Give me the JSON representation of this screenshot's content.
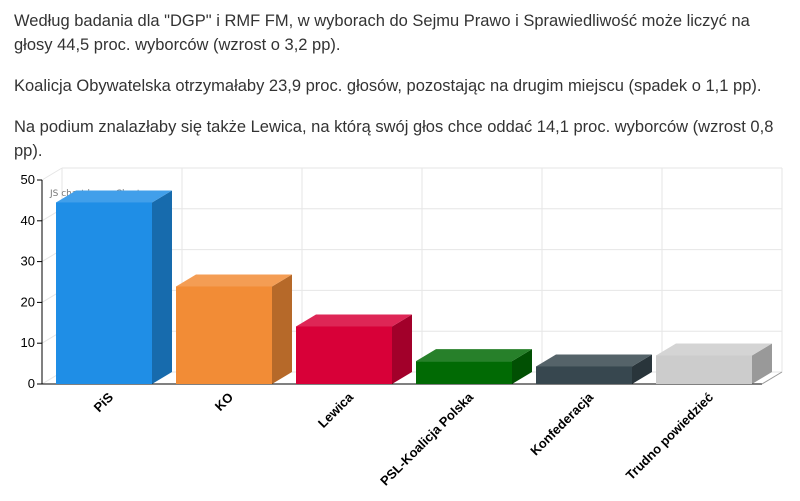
{
  "article": {
    "paragraphs": [
      "Według badania dla \"DGP\" i RMF FM, w wyborach do Sejmu Prawo i Sprawiedliwość może liczyć na głosy 44,5 proc. wyborców (wzrost o 3,2 pp).",
      "Koalicja Obywatelska otrzymałaby 23,9 proc. głosów, pozostając na drugim miejscu (spadek o 1,1 pp).",
      "Na podium znalazłaby się także Lewica, na którą swój głos chce oddać 14,1 proc. wyborców (wzrost 0,8 pp)."
    ]
  },
  "chart_data": {
    "type": "bar",
    "style": "3d-column",
    "credit": "JS chart by amCharts",
    "categories": [
      "PiS",
      "KO",
      "Lewica",
      "PSL-Koalicja Polska",
      "Konfederacja",
      "Trudno powiedzieć"
    ],
    "values": [
      44.5,
      23.9,
      14.1,
      5.6,
      4.3,
      7.0
    ],
    "colors": [
      "#1f8ee6",
      "#f28c36",
      "#d80038",
      "#016a04",
      "#37474f",
      "#cccccc"
    ],
    "ylim": [
      0,
      50
    ],
    "yticks": [
      0,
      10,
      20,
      30,
      40,
      50
    ],
    "grid": true,
    "xlabel": "",
    "ylabel": ""
  }
}
